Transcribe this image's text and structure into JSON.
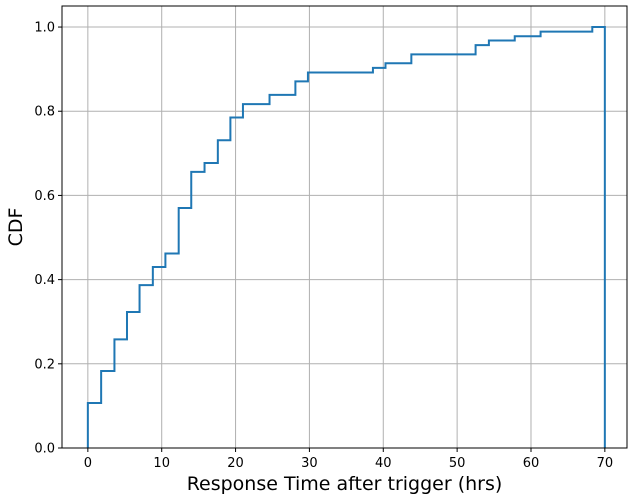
{
  "chart_data": {
    "type": "line",
    "subtype": "step-cdf",
    "title": "",
    "xlabel": "Response Time after trigger (hrs)",
    "ylabel": "CDF",
    "xlim": [
      -3.5,
      73
    ],
    "ylim": [
      0,
      1.05
    ],
    "xticks": [
      0,
      10,
      20,
      30,
      40,
      50,
      60,
      70
    ],
    "xtick_labels": [
      "0",
      "10",
      "20",
      "30",
      "40",
      "50",
      "60",
      "70"
    ],
    "yticks": [
      0.0,
      0.2,
      0.4,
      0.6,
      0.8,
      1.0
    ],
    "ytick_labels": [
      "0.0",
      "0.2",
      "0.4",
      "0.6",
      "0.8",
      "1.0"
    ],
    "grid": true,
    "series": [
      {
        "color": "#1f77b4",
        "x": [
          0,
          0,
          1.8,
          3.6,
          5.3,
          7.0,
          8.8,
          10.5,
          12.3,
          14.0,
          15.8,
          17.6,
          19.3,
          21.0,
          24.6,
          28.1,
          29.8,
          38.6,
          40.3,
          43.8,
          52.5,
          54.3,
          57.8,
          61.3,
          68.3,
          70.0,
          70.0
        ],
        "y": [
          0,
          0.107,
          0.183,
          0.258,
          0.323,
          0.387,
          0.43,
          0.462,
          0.57,
          0.656,
          0.677,
          0.731,
          0.785,
          0.817,
          0.839,
          0.871,
          0.892,
          0.903,
          0.914,
          0.935,
          0.957,
          0.968,
          0.978,
          0.989,
          1.0,
          1.0,
          0
        ]
      }
    ]
  }
}
